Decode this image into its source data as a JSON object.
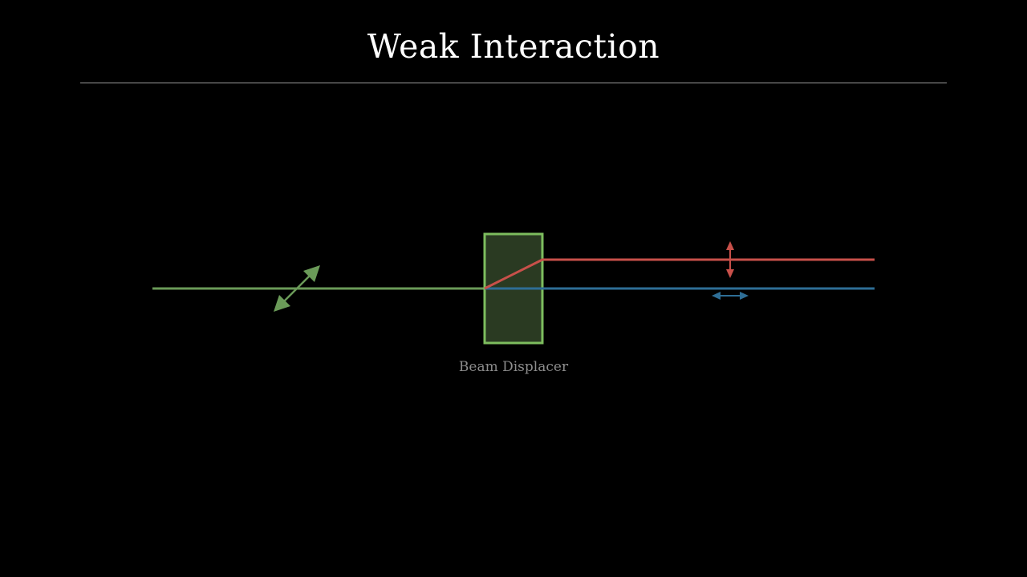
{
  "title": "Weak Interaction",
  "diagram": {
    "element_label": "Beam Displacer",
    "beams": [
      {
        "name": "input beam",
        "polarization": "diagonal"
      },
      {
        "name": "extraordinary beam",
        "polarization": "vertical"
      },
      {
        "name": "ordinary beam",
        "polarization": "horizontal"
      }
    ]
  },
  "colors": {
    "background": "#000000",
    "title": "#ffffff",
    "divider": "#9a9a9a",
    "input_beam": "#6a9a58",
    "displacer_border": "#7dbd5e",
    "displacer_fill": "#2a3a22",
    "extraordinary_beam": "#c8504a",
    "ordinary_beam": "#2e6e96",
    "label": "#8c8c8c"
  }
}
